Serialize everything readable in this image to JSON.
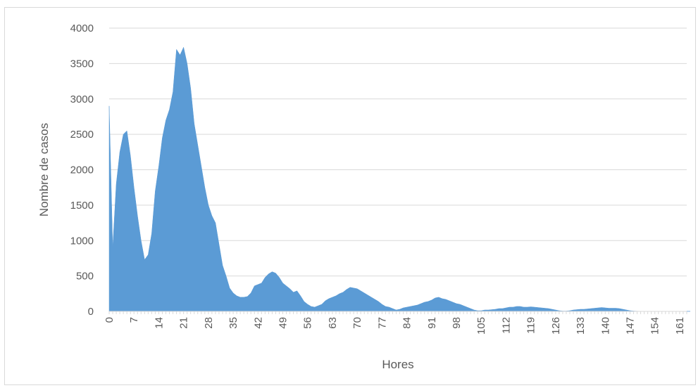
{
  "chart_data": {
    "type": "area",
    "title": "",
    "xlabel": "Hores",
    "ylabel": "Nombre de casos",
    "ylim": [
      0,
      4000
    ],
    "xlim": [
      0,
      163
    ],
    "y_ticks": [
      0,
      500,
      1000,
      1500,
      2000,
      2500,
      3000,
      3500,
      4000
    ],
    "x_ticks": [
      0,
      7,
      14,
      21,
      28,
      35,
      42,
      49,
      56,
      63,
      70,
      77,
      84,
      91,
      98,
      105,
      112,
      119,
      126,
      133,
      140,
      147,
      154,
      161
    ],
    "grid": "horizontal",
    "legend": "none",
    "color": "#5b9bd5",
    "series": [
      {
        "values": [
          2900,
          900,
          1800,
          2250,
          2500,
          2550,
          2200,
          1750,
          1350,
          1000,
          730,
          800,
          1100,
          1700,
          2050,
          2450,
          2700,
          2850,
          3100,
          3700,
          3620,
          3730,
          3500,
          3150,
          2650,
          2350,
          2050,
          1750,
          1500,
          1350,
          1250,
          950,
          650,
          500,
          330,
          260,
          220,
          200,
          200,
          210,
          260,
          360,
          380,
          400,
          480,
          530,
          560,
          540,
          480,
          400,
          360,
          320,
          270,
          290,
          220,
          140,
          100,
          70,
          60,
          80,
          100,
          150,
          180,
          200,
          220,
          250,
          270,
          310,
          340,
          330,
          320,
          290,
          260,
          230,
          200,
          170,
          140,
          100,
          70,
          60,
          40,
          20,
          30,
          50,
          60,
          70,
          80,
          90,
          110,
          130,
          140,
          160,
          190,
          200,
          180,
          170,
          150,
          130,
          110,
          100,
          80,
          60,
          40,
          20,
          10,
          10,
          20,
          20,
          25,
          30,
          40,
          40,
          50,
          60,
          60,
          70,
          70,
          60,
          60,
          65,
          60,
          55,
          50,
          45,
          40,
          30,
          20,
          10,
          5,
          5,
          10,
          20,
          25,
          30,
          30,
          35,
          40,
          45,
          50,
          55,
          50,
          45,
          45,
          45,
          40,
          30,
          20,
          10,
          5,
          3,
          2,
          2,
          1,
          1,
          1,
          1,
          1,
          1,
          1,
          1,
          1,
          1,
          1,
          1,
          1
        ]
      }
    ]
  }
}
